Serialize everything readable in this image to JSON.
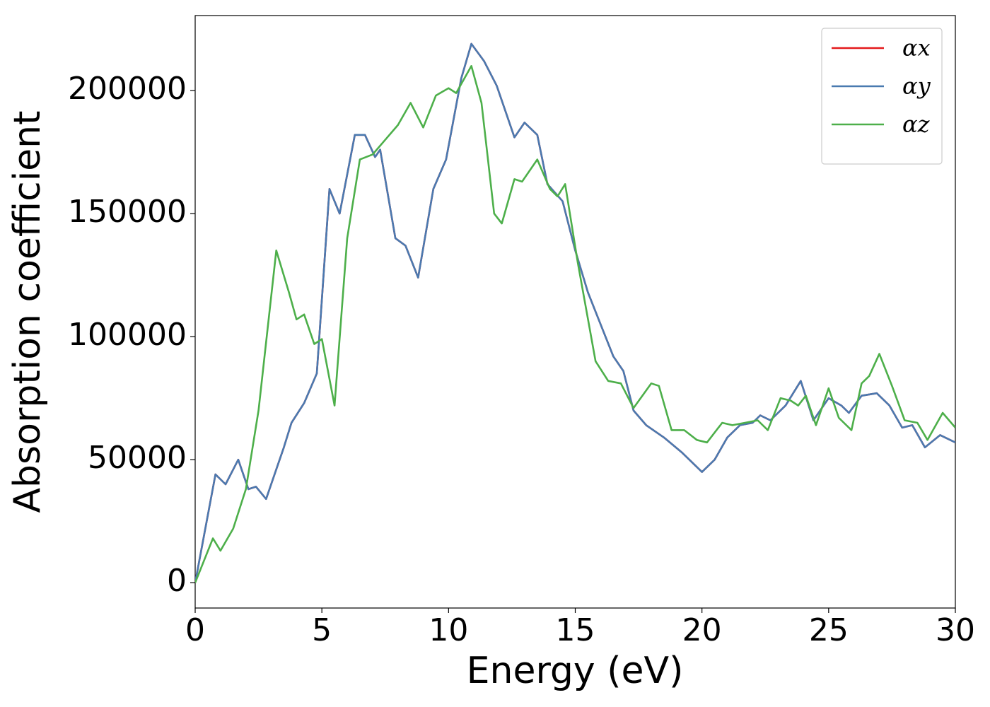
{
  "chart_data": {
    "type": "line",
    "xlabel": "Energy (eV)",
    "ylabel": "Absorption coefficient",
    "xlim": [
      0,
      30
    ],
    "xticks": [
      0,
      5,
      10,
      15,
      20,
      25,
      30
    ],
    "ylim": [
      -10300,
      230500
    ],
    "yticks": [
      0,
      50000,
      100000,
      150000,
      200000
    ],
    "grid": false,
    "legend": "upper right",
    "series": [
      {
        "name": "αx",
        "color": "#e41a1c",
        "x": [
          0,
          0.8,
          1.2,
          1.7,
          2.1,
          2.4,
          2.8,
          3.5,
          3.8,
          4.3,
          4.8,
          5.3,
          5.7,
          6.3,
          6.7,
          7.1,
          7.3,
          7.9,
          8.3,
          8.8,
          9.4,
          9.9,
          10.5,
          10.9,
          11.4,
          11.9,
          12.6,
          13,
          13.5,
          13.9,
          14.5,
          15,
          15.5,
          16,
          16.5,
          16.9,
          17.3,
          17.8,
          18.5,
          19.2,
          20,
          20.5,
          21,
          21.5,
          22,
          22.3,
          22.7,
          23.3,
          23.9,
          24.4,
          25,
          25.5,
          25.8,
          26.3,
          26.9,
          27.4,
          27.9,
          28.3,
          28.8,
          29.4,
          30
        ],
        "values": [
          0,
          44000,
          40000,
          50000,
          38000,
          39000,
          34000,
          55000,
          65000,
          73000,
          85000,
          160000,
          150000,
          182000,
          182000,
          173000,
          176000,
          140000,
          137000,
          124000,
          160000,
          172000,
          205000,
          219000,
          212000,
          202000,
          181000,
          187000,
          182000,
          162000,
          155000,
          135000,
          118000,
          105000,
          92000,
          86000,
          70000,
          64000,
          59000,
          53000,
          45000,
          50000,
          59000,
          64000,
          65000,
          68000,
          66000,
          72000,
          82000,
          66000,
          75000,
          72000,
          69000,
          76000,
          77000,
          72000,
          63000,
          64000,
          55000,
          60000,
          57000
        ]
      },
      {
        "name": "αy",
        "color": "#4a7ab0",
        "x": [
          0,
          0.8,
          1.2,
          1.7,
          2.1,
          2.4,
          2.8,
          3.5,
          3.8,
          4.3,
          4.8,
          5.3,
          5.7,
          6.3,
          6.7,
          7.1,
          7.3,
          7.9,
          8.3,
          8.8,
          9.4,
          9.9,
          10.5,
          10.9,
          11.4,
          11.9,
          12.6,
          13,
          13.5,
          13.9,
          14.5,
          15,
          15.5,
          16,
          16.5,
          16.9,
          17.3,
          17.8,
          18.5,
          19.2,
          20,
          20.5,
          21,
          21.5,
          22,
          22.3,
          22.7,
          23.3,
          23.9,
          24.4,
          25,
          25.5,
          25.8,
          26.3,
          26.9,
          27.4,
          27.9,
          28.3,
          28.8,
          29.4,
          30
        ],
        "values": [
          0,
          44000,
          40000,
          50000,
          38000,
          39000,
          34000,
          55000,
          65000,
          73000,
          85000,
          160000,
          150000,
          182000,
          182000,
          173000,
          176000,
          140000,
          137000,
          124000,
          160000,
          172000,
          205000,
          219000,
          212000,
          202000,
          181000,
          187000,
          182000,
          162000,
          155000,
          135000,
          118000,
          105000,
          92000,
          86000,
          70000,
          64000,
          59000,
          53000,
          45000,
          50000,
          59000,
          64000,
          65000,
          68000,
          66000,
          72000,
          82000,
          66000,
          75000,
          72000,
          69000,
          76000,
          77000,
          72000,
          63000,
          64000,
          55000,
          60000,
          57000
        ]
      },
      {
        "name": "αz",
        "color": "#4daf4a",
        "x": [
          0,
          0.7,
          1,
          1.5,
          2,
          2.5,
          3.2,
          3.7,
          4,
          4.3,
          4.7,
          5,
          5.5,
          6,
          6.5,
          7,
          7.5,
          8,
          8.5,
          9,
          9.5,
          10,
          10.3,
          10.9,
          11.3,
          11.8,
          12.1,
          12.6,
          12.9,
          13.5,
          14,
          14.3,
          14.6,
          15.1,
          15.8,
          16.3,
          16.8,
          17.3,
          18,
          18.3,
          18.8,
          19.3,
          19.8,
          20.2,
          20.8,
          21.2,
          21.7,
          22.2,
          22.6,
          23.1,
          23.5,
          23.8,
          24.1,
          24.5,
          25,
          25.4,
          25.9,
          26.3,
          26.6,
          27,
          27.5,
          28,
          28.5,
          28.9,
          29.5,
          30
        ],
        "values": [
          0,
          18000,
          13000,
          22000,
          38000,
          70000,
          135000,
          118000,
          107000,
          109000,
          97000,
          99000,
          72000,
          140000,
          172000,
          174000,
          180000,
          186000,
          195000,
          185000,
          198000,
          201000,
          199000,
          210000,
          195000,
          150000,
          146000,
          164000,
          163000,
          172000,
          160000,
          157000,
          162000,
          130000,
          90000,
          82000,
          81000,
          71000,
          81000,
          80000,
          62000,
          62000,
          58000,
          57000,
          65000,
          64000,
          65000,
          66000,
          62000,
          75000,
          74000,
          72000,
          76000,
          64000,
          79000,
          67000,
          62000,
          81000,
          84000,
          93000,
          80000,
          66000,
          65000,
          58000,
          69000,
          63000
        ]
      }
    ]
  }
}
